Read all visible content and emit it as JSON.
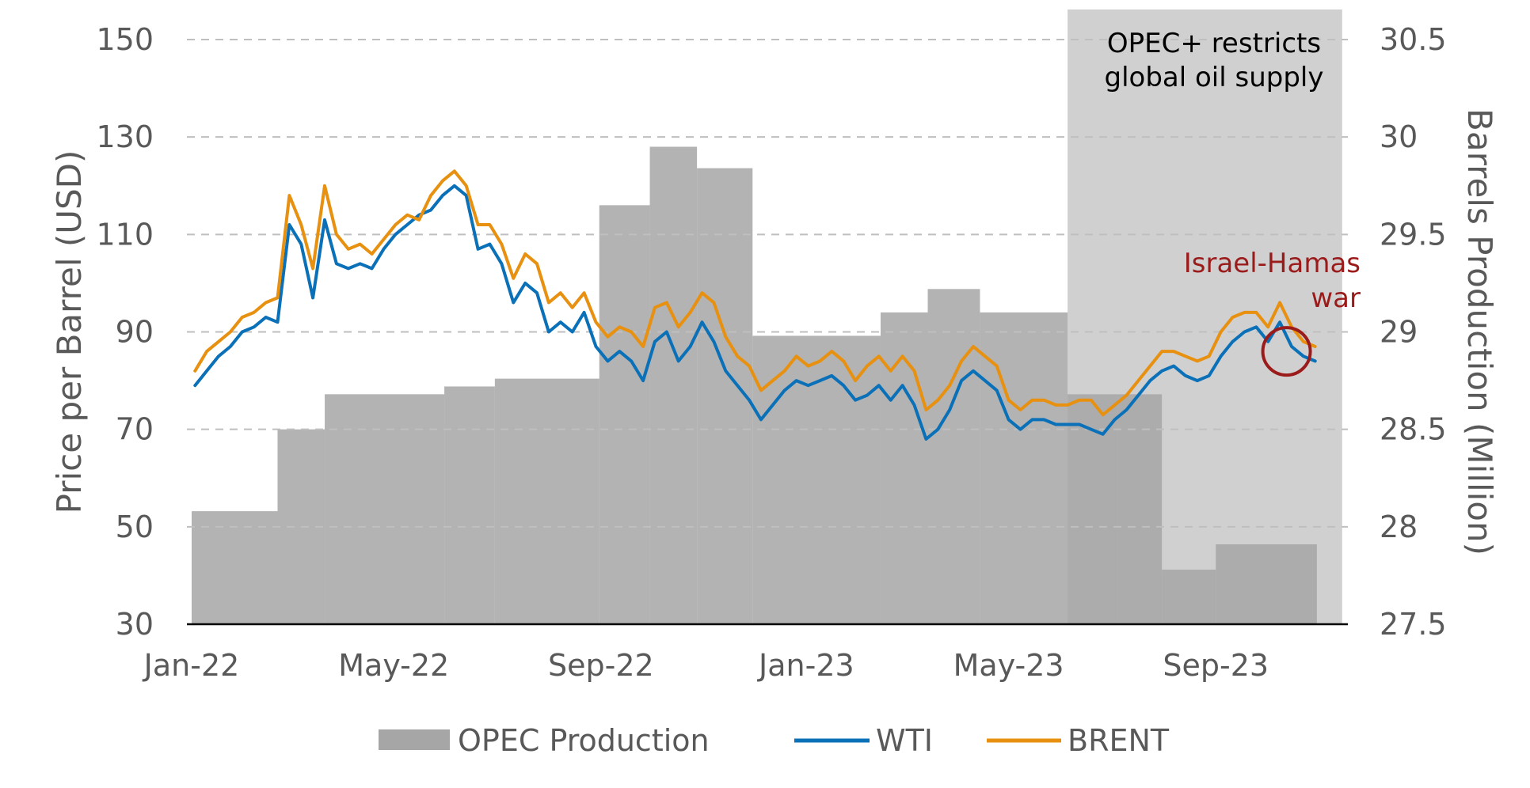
{
  "chart_data": {
    "type": "line",
    "x_ticks": [
      "Jan-22",
      "May-22",
      "Sep-22",
      "Jan-23",
      "May-23",
      "Sep-23"
    ],
    "x_range": [
      "2022-01-01",
      "2023-11-15"
    ],
    "y_left": {
      "label": "Price per Barrel (USD)",
      "ticks": [
        30,
        50,
        70,
        90,
        110,
        130,
        150
      ],
      "range": [
        30,
        150
      ]
    },
    "y_right": {
      "label": "Barrels Production (Million)",
      "ticks": [
        "27.5",
        "28",
        "28.5",
        "29",
        "29.5",
        "30",
        "30.5"
      ],
      "range": [
        27.5,
        30.5
      ]
    },
    "grid": true,
    "legend": {
      "placement": "bottom",
      "items": [
        "OPEC Production",
        "WTI",
        "BRENT"
      ]
    },
    "colors": {
      "opec_fill": "#a6a6a6",
      "shade": "#d0d0d0",
      "wti": "#0a70b8",
      "brent": "#e8900f",
      "annotation_war": "#9b1b1b",
      "grid": "#bfbfbf",
      "axis": "#000000",
      "tick_text": "#595959"
    },
    "shaded_region": {
      "start": "2023-06-05",
      "end": "2023-11-15",
      "label_line1": "OPEC+ restricts",
      "label_line2": "global oil supply"
    },
    "annotations": [
      {
        "label_line1": "Israel-Hamas",
        "label_line2": "war",
        "date": "2023-10-13",
        "price": 86
      }
    ],
    "opec_production": [
      {
        "start": "2022-01-01",
        "end": "2022-02-21",
        "value": 28.08
      },
      {
        "start": "2022-02-21",
        "end": "2022-03-21",
        "value": 28.5
      },
      {
        "start": "2022-03-21",
        "end": "2022-05-31",
        "value": 28.68
      },
      {
        "start": "2022-05-31",
        "end": "2022-06-30",
        "value": 28.72
      },
      {
        "start": "2022-06-30",
        "end": "2022-08-31",
        "value": 28.76
      },
      {
        "start": "2022-08-31",
        "end": "2022-09-30",
        "value": 29.65
      },
      {
        "start": "2022-09-30",
        "end": "2022-10-28",
        "value": 29.95
      },
      {
        "start": "2022-10-28",
        "end": "2022-11-30",
        "value": 29.84
      },
      {
        "start": "2022-11-30",
        "end": "2023-02-14",
        "value": 28.98
      },
      {
        "start": "2023-02-14",
        "end": "2023-03-14",
        "value": 29.1
      },
      {
        "start": "2023-03-14",
        "end": "2023-04-14",
        "value": 29.22
      },
      {
        "start": "2023-04-14",
        "end": "2023-06-05",
        "value": 29.1
      },
      {
        "start": "2023-06-05",
        "end": "2023-07-05",
        "value": 28.68
      },
      {
        "start": "2023-07-05",
        "end": "2023-07-31",
        "value": 28.68
      },
      {
        "start": "2023-07-31",
        "end": "2023-09-01",
        "value": 27.78
      },
      {
        "start": "2023-09-01",
        "end": "2023-10-31",
        "value": 27.91
      }
    ],
    "series": [
      {
        "name": "WTI",
        "x": [
          "2022-01-03",
          "2022-01-10",
          "2022-01-17",
          "2022-01-24",
          "2022-01-31",
          "2022-02-07",
          "2022-02-14",
          "2022-02-21",
          "2022-02-28",
          "2022-03-07",
          "2022-03-14",
          "2022-03-21",
          "2022-03-28",
          "2022-04-04",
          "2022-04-11",
          "2022-04-18",
          "2022-04-25",
          "2022-05-02",
          "2022-05-09",
          "2022-05-16",
          "2022-05-23",
          "2022-05-30",
          "2022-06-06",
          "2022-06-13",
          "2022-06-20",
          "2022-06-27",
          "2022-07-04",
          "2022-07-11",
          "2022-07-18",
          "2022-07-25",
          "2022-08-01",
          "2022-08-08",
          "2022-08-15",
          "2022-08-22",
          "2022-08-29",
          "2022-09-05",
          "2022-09-12",
          "2022-09-19",
          "2022-09-26",
          "2022-10-03",
          "2022-10-10",
          "2022-10-17",
          "2022-10-24",
          "2022-10-31",
          "2022-11-07",
          "2022-11-14",
          "2022-11-21",
          "2022-11-28",
          "2022-12-05",
          "2022-12-12",
          "2022-12-19",
          "2022-12-26",
          "2023-01-02",
          "2023-01-09",
          "2023-01-16",
          "2023-01-23",
          "2023-01-30",
          "2023-02-06",
          "2023-02-13",
          "2023-02-20",
          "2023-02-27",
          "2023-03-06",
          "2023-03-13",
          "2023-03-20",
          "2023-03-27",
          "2023-04-03",
          "2023-04-10",
          "2023-04-17",
          "2023-04-24",
          "2023-05-01",
          "2023-05-08",
          "2023-05-15",
          "2023-05-22",
          "2023-05-29",
          "2023-06-05",
          "2023-06-12",
          "2023-06-19",
          "2023-06-26",
          "2023-07-03",
          "2023-07-10",
          "2023-07-17",
          "2023-07-24",
          "2023-07-31",
          "2023-08-07",
          "2023-08-14",
          "2023-08-21",
          "2023-08-28",
          "2023-09-04",
          "2023-09-11",
          "2023-09-18",
          "2023-09-25",
          "2023-10-02",
          "2023-10-09",
          "2023-10-16",
          "2023-10-23",
          "2023-10-30"
        ],
        "values": [
          79,
          82,
          85,
          87,
          90,
          91,
          93,
          92,
          112,
          108,
          97,
          113,
          104,
          103,
          104,
          103,
          107,
          110,
          112,
          114,
          115,
          118,
          120,
          118,
          107,
          108,
          104,
          96,
          100,
          98,
          90,
          92,
          90,
          94,
          87,
          84,
          86,
          84,
          80,
          88,
          90,
          84,
          87,
          92,
          88,
          82,
          79,
          76,
          72,
          75,
          78,
          80,
          79,
          80,
          81,
          79,
          76,
          77,
          79,
          76,
          79,
          75,
          68,
          70,
          74,
          80,
          82,
          80,
          78,
          72,
          70,
          72,
          72,
          71,
          71,
          71,
          70,
          69,
          72,
          74,
          77,
          80,
          82,
          83,
          81,
          80,
          81,
          85,
          88,
          90,
          91,
          88,
          92,
          87,
          85,
          84
        ],
        "color": "#0a70b8"
      },
      {
        "name": "BRENT",
        "x": [
          "2022-01-03",
          "2022-01-10",
          "2022-01-17",
          "2022-01-24",
          "2022-01-31",
          "2022-02-07",
          "2022-02-14",
          "2022-02-21",
          "2022-02-28",
          "2022-03-07",
          "2022-03-14",
          "2022-03-21",
          "2022-03-28",
          "2022-04-04",
          "2022-04-11",
          "2022-04-18",
          "2022-04-25",
          "2022-05-02",
          "2022-05-09",
          "2022-05-16",
          "2022-05-23",
          "2022-05-30",
          "2022-06-06",
          "2022-06-13",
          "2022-06-20",
          "2022-06-27",
          "2022-07-04",
          "2022-07-11",
          "2022-07-18",
          "2022-07-25",
          "2022-08-01",
          "2022-08-08",
          "2022-08-15",
          "2022-08-22",
          "2022-08-29",
          "2022-09-05",
          "2022-09-12",
          "2022-09-19",
          "2022-09-26",
          "2022-10-03",
          "2022-10-10",
          "2022-10-17",
          "2022-10-24",
          "2022-10-31",
          "2022-11-07",
          "2022-11-14",
          "2022-11-21",
          "2022-11-28",
          "2022-12-05",
          "2022-12-12",
          "2022-12-19",
          "2022-12-26",
          "2023-01-02",
          "2023-01-09",
          "2023-01-16",
          "2023-01-23",
          "2023-01-30",
          "2023-02-06",
          "2023-02-13",
          "2023-02-20",
          "2023-02-27",
          "2023-03-06",
          "2023-03-13",
          "2023-03-20",
          "2023-03-27",
          "2023-04-03",
          "2023-04-10",
          "2023-04-17",
          "2023-04-24",
          "2023-05-01",
          "2023-05-08",
          "2023-05-15",
          "2023-05-22",
          "2023-05-29",
          "2023-06-05",
          "2023-06-12",
          "2023-06-19",
          "2023-06-26",
          "2023-07-03",
          "2023-07-10",
          "2023-07-17",
          "2023-07-24",
          "2023-07-31",
          "2023-08-07",
          "2023-08-14",
          "2023-08-21",
          "2023-08-28",
          "2023-09-04",
          "2023-09-11",
          "2023-09-18",
          "2023-09-25",
          "2023-10-02",
          "2023-10-09",
          "2023-10-16",
          "2023-10-23",
          "2023-10-30"
        ],
        "values": [
          82,
          86,
          88,
          90,
          93,
          94,
          96,
          97,
          118,
          112,
          103,
          120,
          110,
          107,
          108,
          106,
          109,
          112,
          114,
          113,
          118,
          121,
          123,
          120,
          112,
          112,
          108,
          101,
          106,
          104,
          96,
          98,
          95,
          98,
          92,
          89,
          91,
          90,
          87,
          95,
          96,
          91,
          94,
          98,
          96,
          89,
          85,
          83,
          78,
          80,
          82,
          85,
          83,
          84,
          86,
          84,
          80,
          83,
          85,
          82,
          85,
          82,
          74,
          76,
          79,
          84,
          87,
          85,
          83,
          76,
          74,
          76,
          76,
          75,
          75,
          76,
          76,
          73,
          75,
          77,
          80,
          83,
          86,
          86,
          85,
          84,
          85,
          90,
          93,
          94,
          94,
          91,
          96,
          91,
          88,
          87
        ],
        "color": "#e8900f"
      }
    ]
  }
}
